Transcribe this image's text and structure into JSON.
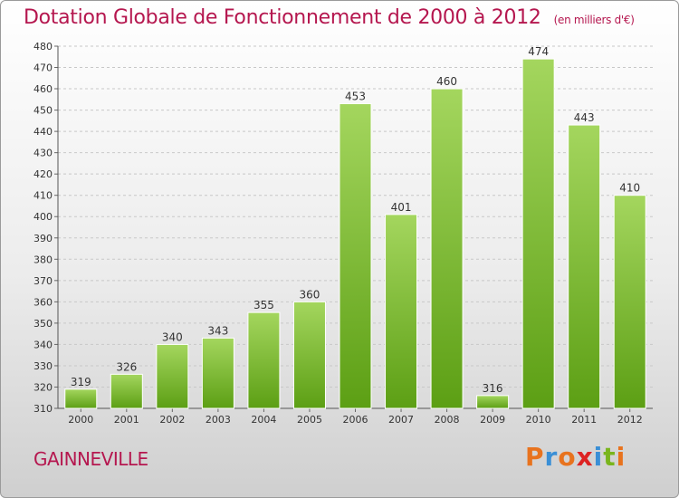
{
  "header": {
    "title": "Dotation Globale de Fonctionnement de 2000 à 2012",
    "subtitle": "(en milliers d'€)"
  },
  "footer": {
    "commune": "GAINNEVILLE",
    "logo": "Proxiti",
    "logo_colors": [
      "#e8731e",
      "#3a8fd6",
      "#e8731e",
      "#d22",
      "#3a8fd6",
      "#7ab51d",
      "#e8731e"
    ]
  },
  "colors": {
    "bar_top": "#a4d65e",
    "bar_bottom": "#5c9f14",
    "accent": "#b5174f"
  },
  "chart_data": {
    "type": "bar",
    "categories": [
      "2000",
      "2001",
      "2002",
      "2003",
      "2004",
      "2005",
      "2006",
      "2007",
      "2008",
      "2009",
      "2010",
      "2011",
      "2012"
    ],
    "values": [
      319,
      326,
      340,
      343,
      355,
      360,
      453,
      401,
      460,
      316,
      474,
      443,
      410
    ],
    "title": "Dotation Globale de Fonctionnement de 2000 à 2012",
    "subtitle": "(en milliers d'€)",
    "ylim": [
      310,
      480
    ],
    "yticks": [
      310,
      320,
      330,
      340,
      350,
      360,
      370,
      380,
      390,
      400,
      410,
      420,
      430,
      440,
      450,
      460,
      470,
      480
    ],
    "grid": true
  }
}
